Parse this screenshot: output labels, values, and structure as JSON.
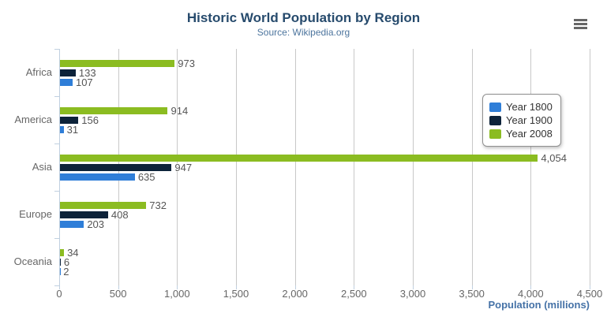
{
  "header": {
    "title": "Historic World Population by Region",
    "subtitle": "Source: Wikipedia.org"
  },
  "export_menu": {
    "icon": "hamburger-menu-icon"
  },
  "colors": {
    "title": "#274b6d",
    "subtitle": "#4d759e",
    "axis_title": "#4572a7",
    "axis_line": "#c0d0e0",
    "gridline": "#c8c8c8",
    "labels": "#666666"
  },
  "chart_data": {
    "type": "bar",
    "orientation": "horizontal",
    "title": "Historic World Population by Region",
    "subtitle": "Source: Wikipedia.org",
    "categories": [
      "Africa",
      "America",
      "Asia",
      "Europe",
      "Oceania"
    ],
    "series": [
      {
        "name": "Year 1800",
        "color": "#2f7ed8",
        "values": [
          107,
          31,
          635,
          203,
          2
        ]
      },
      {
        "name": "Year 1900",
        "color": "#0d233a",
        "values": [
          133,
          156,
          947,
          408,
          6
        ]
      },
      {
        "name": "Year 2008",
        "color": "#8bbc21",
        "values": [
          973,
          914,
          4054,
          732,
          34
        ]
      }
    ],
    "data_labels": [
      [
        "107",
        "31",
        "635",
        "203",
        "2"
      ],
      [
        "133",
        "156",
        "947",
        "408",
        "6"
      ],
      [
        "973",
        "914",
        "4,054",
        "732",
        "34"
      ]
    ],
    "xlabel": "Population (millions)",
    "ylabel": "",
    "xlim": [
      0,
      4500
    ],
    "xtick_step": 500,
    "xtick_labels": [
      "0",
      "500",
      "1,000",
      "1,500",
      "2,000",
      "2,500",
      "3,000",
      "3,500",
      "4,000",
      "4,500"
    ],
    "grid": true,
    "legend_position": "inside-right-top",
    "legend_entries": [
      "Year 1800",
      "Year 1900",
      "Year 2008"
    ]
  }
}
